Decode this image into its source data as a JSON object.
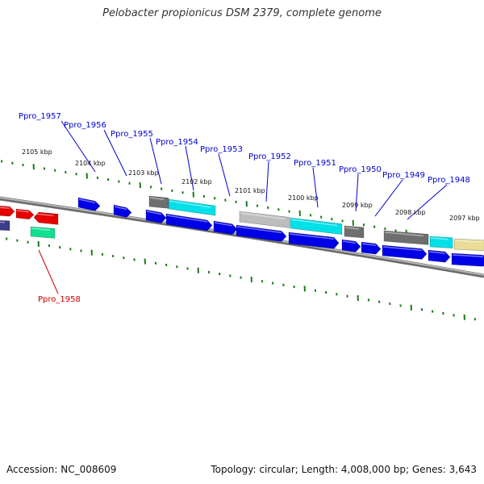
{
  "title": "Pelobacter propionicus DSM 2379, complete genome",
  "accession": "Accession: NC_008609",
  "summary": "Topology: circular; Length: 4,008,000 bp; Genes: 3,643",
  "colors": {
    "label_blue": "#0000CC",
    "label_red": "#CC0000",
    "tick_green": "#1A7A1A",
    "backbone": "#8C8C8C",
    "gene_blue": "#0000E6",
    "gene_red": "#E60000",
    "gene_cyan": "#00E0E8",
    "gene_green": "#10E090",
    "gene_gray": "#6E6E6E",
    "gene_lightgray": "#BDBDBD",
    "gene_yellow": "#E8DC96",
    "gene_navy": "#3C3C8C"
  },
  "kbp_labels": [
    "2105 kbp",
    "2104 kbp",
    "2103 kbp",
    "2102 kbp",
    "2101 kbp",
    "2100 kbp",
    "2099 kbp",
    "2098 kbp",
    "2097 kbp"
  ],
  "gene_labels": [
    {
      "text": "Ppro_1957",
      "color": "blue"
    },
    {
      "text": "Ppro_1956",
      "color": "blue"
    },
    {
      "text": "Ppro_1955",
      "color": "blue"
    },
    {
      "text": "Ppro_1954",
      "color": "blue"
    },
    {
      "text": "Ppro_1953",
      "color": "blue"
    },
    {
      "text": "Ppro_1952",
      "color": "blue"
    },
    {
      "text": "Ppro_1951",
      "color": "blue"
    },
    {
      "text": "Ppro_1950",
      "color": "blue"
    },
    {
      "text": "Ppro_1949",
      "color": "blue"
    },
    {
      "text": "Ppro_1948",
      "color": "blue"
    },
    {
      "text": "Ppro_1958",
      "color": "red"
    }
  ]
}
